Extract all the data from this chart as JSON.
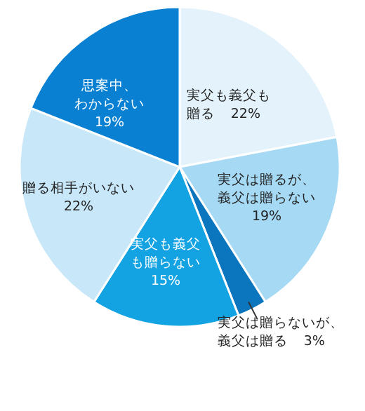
{
  "chart_data": {
    "type": "pie",
    "categories": [
      "実父も義父も贈る",
      "実父は贈るが、義父は贈らない",
      "実父は贈らないが、義父は贈る",
      "実父も義父も贈らない",
      "贈る相手がいない",
      "思案中、わからない"
    ],
    "values": [
      22,
      19,
      3,
      15,
      22,
      19
    ],
    "value_labels": [
      "22%",
      "19%",
      "3%",
      "15%",
      "22%",
      "19%"
    ],
    "colors": [
      "#e3f2fb",
      "#a6d9f4",
      "#0b76bd",
      "#13a2e2",
      "#c8e7f8",
      "#0a80d2"
    ]
  }
}
